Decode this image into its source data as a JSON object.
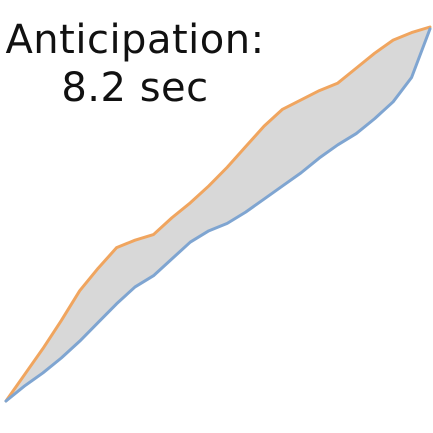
{
  "chart_data": {
    "type": "area",
    "title": "",
    "xlabel": "",
    "ylabel": "",
    "grid": false,
    "legend": "none",
    "annotation": {
      "line1": "Anticipation:",
      "line2": "8.2 sec"
    },
    "x": [
      0,
      1,
      2,
      3,
      4,
      5,
      6,
      7,
      8,
      9,
      10,
      11,
      12,
      13,
      14,
      15,
      16,
      17,
      18,
      19,
      20,
      21,
      22,
      23
    ],
    "series": [
      {
        "color": "#f0a55f",
        "values": [
          0,
          1.4,
          2.8,
          4.3,
          5.9,
          7.1,
          8.2,
          8.6,
          8.9,
          9.8,
          10.6,
          11.5,
          12.5,
          13.6,
          14.7,
          15.6,
          16.1,
          16.6,
          17.0,
          17.8,
          18.6,
          19.3,
          19.7,
          20.0
        ]
      },
      {
        "color": "#7fa5d1",
        "values": [
          0,
          0.8,
          1.5,
          2.3,
          3.2,
          4.2,
          5.2,
          6.1,
          6.7,
          7.6,
          8.5,
          9.1,
          9.5,
          10.1,
          10.8,
          11.5,
          12.2,
          13.0,
          13.7,
          14.3,
          15.1,
          16.0,
          17.3,
          19.9
        ]
      }
    ],
    "fill_color": "#d8d8d8",
    "xlim": [
      0,
      23
    ],
    "ylim": [
      0,
      20
    ]
  }
}
